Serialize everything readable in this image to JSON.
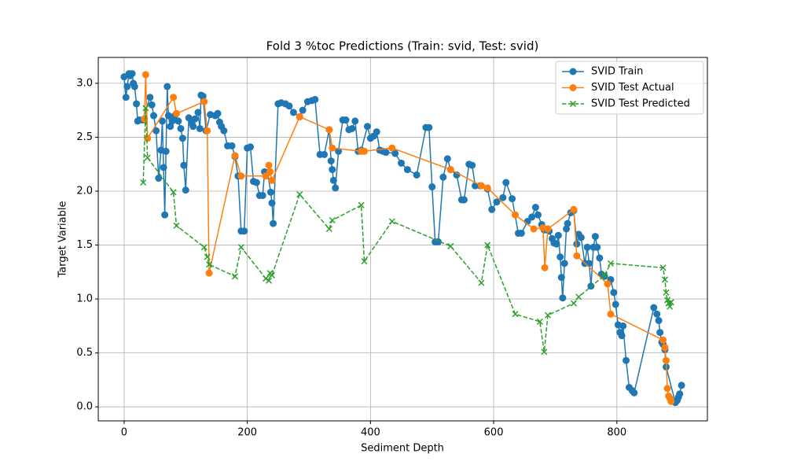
{
  "chart_data": {
    "type": "line",
    "title": "Fold 3 %toc Predictions (Train: svid, Test: svid)",
    "x_label": "Sediment Depth",
    "y_label": "Target Variable",
    "xlim": [
      -42,
      947
    ],
    "ylim": [
      -0.13,
      3.24
    ],
    "xticks": [
      0,
      200,
      400,
      600,
      800
    ],
    "yticks": [
      {
        "value": 0,
        "label": "0.0"
      },
      {
        "value": 0.5,
        "label": "0.5"
      },
      {
        "value": 1,
        "label": "1.0"
      },
      {
        "value": 1.5,
        "label": "1.5"
      },
      {
        "value": 2,
        "label": "2.0"
      },
      {
        "value": 2.5,
        "label": "2.5"
      },
      {
        "value": 3,
        "label": "3.0"
      }
    ],
    "grid": true,
    "legend": "upper right",
    "series": [
      {
        "name": "SVID Train",
        "color": "#1f77b4",
        "marker": "o",
        "linestyle": "solid",
        "x": [
          0,
          3,
          5,
          8,
          10,
          13,
          15,
          17,
          20,
          22,
          25,
          30,
          42,
          45,
          48,
          52,
          56,
          60,
          62,
          64,
          66,
          68,
          70,
          72,
          75,
          78,
          82,
          88,
          92,
          95,
          97,
          100,
          105,
          110,
          112,
          115,
          120,
          123,
          125,
          128,
          133,
          140,
          148,
          152,
          155,
          158,
          162,
          168,
          175,
          180,
          185,
          190,
          195,
          200,
          205,
          210,
          215,
          220,
          225,
          228,
          233,
          238,
          240,
          242,
          250,
          255,
          262,
          268,
          275,
          285,
          290,
          298,
          305,
          310,
          318,
          325,
          333,
          336,
          338,
          340,
          343,
          348,
          355,
          360,
          365,
          370,
          375,
          380,
          385,
          395,
          400,
          405,
          410,
          415,
          420,
          425,
          440,
          450,
          460,
          475,
          490,
          495,
          500,
          505,
          510,
          518,
          525,
          530,
          540,
          548,
          552,
          560,
          565,
          570,
          578,
          590,
          597,
          605,
          615,
          620,
          630,
          640,
          645,
          655,
          662,
          668,
          672,
          678,
          682,
          690,
          695,
          698,
          702,
          705,
          708,
          710,
          712,
          715,
          718,
          720,
          725,
          730,
          735,
          738,
          742,
          748,
          752,
          755,
          758,
          762,
          765,
          768,
          772,
          775,
          780,
          790,
          795,
          798,
          802,
          805,
          808,
          810,
          815,
          820,
          825,
          828,
          860,
          865,
          868,
          870,
          873,
          875,
          878,
          880,
          895,
          898,
          900,
          902,
          905
        ],
        "values": [
          3.06,
          2.87,
          2.97,
          3.09,
          3.07,
          3.09,
          3.0,
          2.97,
          2.81,
          2.65,
          2.66,
          2.66,
          2.87,
          2.8,
          2.7,
          2.56,
          2.12,
          2.38,
          2.65,
          2.22,
          1.78,
          2.37,
          2.97,
          2.7,
          2.6,
          2.65,
          2.7,
          2.65,
          2.58,
          2.49,
          2.24,
          2.01,
          2.68,
          2.63,
          2.6,
          2.67,
          2.73,
          2.58,
          2.89,
          2.88,
          2.56,
          2.71,
          2.7,
          2.72,
          2.64,
          2.6,
          2.56,
          2.42,
          2.42,
          2.32,
          2.14,
          1.63,
          1.63,
          2.4,
          2.41,
          2.09,
          2.08,
          1.96,
          1.96,
          2.18,
          2.17,
          1.99,
          1.89,
          1.7,
          2.81,
          2.82,
          2.81,
          2.79,
          2.73,
          2.69,
          2.75,
          2.83,
          2.84,
          2.85,
          2.34,
          2.34,
          2.57,
          2.28,
          2.2,
          2.1,
          2.03,
          2.37,
          2.66,
          2.66,
          2.57,
          2.58,
          2.65,
          2.37,
          2.38,
          2.6,
          2.49,
          2.51,
          2.55,
          2.38,
          2.37,
          2.36,
          2.35,
          2.26,
          2.2,
          2.15,
          2.59,
          2.59,
          2.04,
          1.53,
          1.53,
          2.13,
          2.3,
          2.2,
          2.15,
          1.92,
          1.92,
          2.25,
          2.24,
          2.05,
          2.05,
          2.02,
          1.83,
          1.9,
          1.94,
          2.08,
          1.93,
          1.61,
          1.61,
          1.72,
          1.76,
          1.85,
          1.78,
          1.69,
          1.64,
          1.63,
          1.56,
          1.52,
          1.51,
          1.59,
          1.39,
          1.2,
          1.01,
          1.33,
          1.65,
          1.7,
          1.8,
          1.82,
          1.51,
          1.6,
          1.57,
          1.33,
          1.48,
          1.33,
          1.12,
          1.48,
          1.58,
          1.48,
          1.38,
          1.23,
          1.21,
          1.18,
          1.06,
          0.95,
          0.76,
          0.69,
          0.66,
          0.75,
          0.43,
          0.18,
          0.15,
          0.13,
          0.92,
          0.86,
          0.8,
          0.69,
          0.6,
          0.58,
          0.53,
          0.37,
          0.04,
          0.06,
          0.09,
          0.12,
          0.2
        ]
      },
      {
        "name": "SVID Test Actual",
        "color": "#ff7f0e",
        "marker": "o",
        "linestyle": "solid",
        "x": [
          33,
          35,
          38,
          80,
          85,
          130,
          135,
          138,
          180,
          190,
          230,
          235,
          237,
          240,
          285,
          333,
          338,
          385,
          390,
          435,
          530,
          580,
          590,
          635,
          665,
          680,
          683,
          688,
          730,
          735,
          785,
          790,
          875,
          878,
          880,
          882,
          884,
          886,
          888
        ],
        "values": [
          2.67,
          3.08,
          2.49,
          2.87,
          2.72,
          2.83,
          2.56,
          1.24,
          2.33,
          2.14,
          2.14,
          2.24,
          2.18,
          2.1,
          2.69,
          2.57,
          2.4,
          2.37,
          2.37,
          2.4,
          2.2,
          2.05,
          2.03,
          1.78,
          1.65,
          1.66,
          1.29,
          1.65,
          1.83,
          1.4,
          1.14,
          0.86,
          0.62,
          0.55,
          0.43,
          0.17,
          0.1,
          0.08,
          0.05
        ]
      },
      {
        "name": "SVID Test Predicted",
        "color": "#2ca02c",
        "marker": "x",
        "linestyle": "dashed",
        "x": [
          31,
          35,
          38,
          80,
          85,
          130,
          135,
          138,
          180,
          190,
          230,
          235,
          237,
          240,
          285,
          333,
          338,
          385,
          390,
          435,
          530,
          580,
          590,
          635,
          675,
          682,
          688,
          730,
          738,
          780,
          790,
          875,
          878,
          880,
          882,
          884,
          886,
          888
        ],
        "values": [
          2.08,
          2.77,
          2.31,
          1.99,
          1.68,
          1.48,
          1.39,
          1.32,
          1.21,
          1.48,
          1.19,
          1.17,
          1.24,
          1.22,
          1.97,
          1.65,
          1.73,
          1.87,
          1.35,
          1.72,
          1.49,
          1.15,
          1.5,
          0.86,
          0.79,
          0.51,
          0.85,
          0.96,
          1.02,
          1.22,
          1.33,
          1.29,
          1.18,
          1.06,
          0.99,
          0.96,
          0.93,
          0.97
        ]
      }
    ]
  }
}
